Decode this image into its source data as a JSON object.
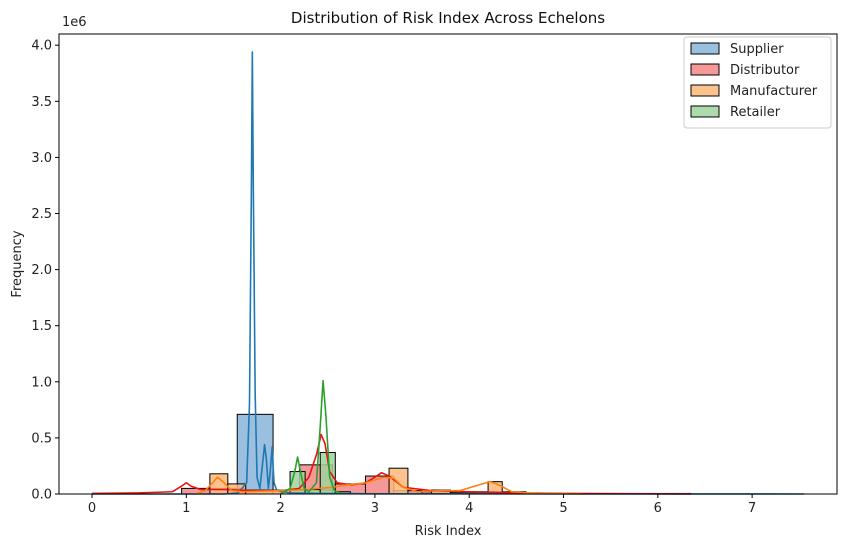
{
  "chart_data": {
    "type": "histogram",
    "title": "Distribution of Risk Index Across Echelons",
    "xlabel": "Risk Index",
    "ylabel": "Frequency",
    "y_offset_label": "1e6",
    "xlim": [
      -0.35,
      7.9
    ],
    "ylim": [
      0,
      4.1
    ],
    "x_ticks": [
      0,
      1,
      2,
      3,
      4,
      5,
      6,
      7
    ],
    "x_tick_labels": [
      "0",
      "1",
      "2",
      "3",
      "4",
      "5",
      "6",
      "7"
    ],
    "y_ticks": [
      0,
      0.5,
      1.0,
      1.5,
      2.0,
      2.5,
      3.0,
      3.5,
      4.0
    ],
    "y_tick_labels": [
      "0.0",
      "0.5",
      "1.0",
      "1.5",
      "2.0",
      "2.5",
      "3.0",
      "3.5",
      "4.0"
    ],
    "grid": false,
    "legend_position": "top-right",
    "series": [
      {
        "name": "Supplier",
        "fill": "#89b5d9",
        "line": "#1f77b4",
        "bins": [
          {
            "x0": 1.48,
            "x1": 1.54,
            "value": 0.01
          },
          {
            "x0": 1.54,
            "x1": 1.92,
            "value": 0.71
          },
          {
            "x0": 1.92,
            "x1": 2.0,
            "value": 0.03
          }
        ],
        "kde": [
          [
            0.0,
            0.0
          ],
          [
            1.4,
            0.0
          ],
          [
            1.55,
            0.01
          ],
          [
            1.64,
            0.1
          ],
          [
            1.67,
            0.8
          ],
          [
            1.69,
            2.7
          ],
          [
            1.7,
            3.94
          ],
          [
            1.71,
            2.8
          ],
          [
            1.73,
            0.9
          ],
          [
            1.75,
            0.15
          ],
          [
            1.78,
            0.05
          ],
          [
            1.8,
            0.2
          ],
          [
            1.83,
            0.44
          ],
          [
            1.85,
            0.3
          ],
          [
            1.87,
            0.05
          ],
          [
            1.89,
            0.2
          ],
          [
            1.91,
            0.42
          ],
          [
            1.93,
            0.1
          ],
          [
            1.96,
            0.03
          ],
          [
            2.1,
            0.01
          ],
          [
            2.4,
            0.005
          ],
          [
            3.0,
            0.002
          ],
          [
            5.0,
            0.001
          ],
          [
            7.55,
            0.0
          ]
        ]
      },
      {
        "name": "Distributor",
        "fill": "#f48686",
        "line": "#e8110f",
        "bins": [
          {
            "x0": 0.95,
            "x1": 1.62,
            "value": 0.05
          },
          {
            "x0": 2.2,
            "x1": 2.55,
            "value": 0.26
          },
          {
            "x0": 2.55,
            "x1": 2.9,
            "value": 0.09
          },
          {
            "x0": 2.9,
            "x1": 3.2,
            "value": 0.16
          },
          {
            "x0": 3.2,
            "x1": 3.5,
            "value": 0.03
          },
          {
            "x0": 3.5,
            "x1": 4.6,
            "value": 0.02
          },
          {
            "x0": 4.6,
            "x1": 6.35,
            "value": 0.005
          }
        ],
        "kde": [
          [
            0.0,
            0.005
          ],
          [
            0.5,
            0.01
          ],
          [
            0.85,
            0.02
          ],
          [
            0.95,
            0.07
          ],
          [
            1.0,
            0.1
          ],
          [
            1.05,
            0.07
          ],
          [
            1.15,
            0.04
          ],
          [
            1.4,
            0.04
          ],
          [
            1.7,
            0.03
          ],
          [
            2.0,
            0.03
          ],
          [
            2.2,
            0.05
          ],
          [
            2.3,
            0.15
          ],
          [
            2.38,
            0.35
          ],
          [
            2.43,
            0.53
          ],
          [
            2.47,
            0.45
          ],
          [
            2.52,
            0.2
          ],
          [
            2.6,
            0.1
          ],
          [
            2.75,
            0.08
          ],
          [
            2.9,
            0.1
          ],
          [
            3.0,
            0.15
          ],
          [
            3.07,
            0.19
          ],
          [
            3.15,
            0.16
          ],
          [
            3.3,
            0.06
          ],
          [
            3.6,
            0.03
          ],
          [
            4.0,
            0.02
          ],
          [
            4.5,
            0.01
          ],
          [
            5.0,
            0.005
          ],
          [
            6.35,
            0.0
          ]
        ]
      },
      {
        "name": "Manufacturer",
        "fill": "#fdb97b",
        "line": "#ff7f0e",
        "bins": [
          {
            "x0": 1.25,
            "x1": 1.44,
            "value": 0.18
          },
          {
            "x0": 1.44,
            "x1": 1.63,
            "value": 0.09
          },
          {
            "x0": 1.63,
            "x1": 2.55,
            "value": 0.035
          },
          {
            "x0": 3.15,
            "x1": 3.35,
            "value": 0.23
          },
          {
            "x0": 3.6,
            "x1": 3.8,
            "value": 0.035
          },
          {
            "x0": 3.8,
            "x1": 4.2,
            "value": 0.015
          },
          {
            "x0": 4.2,
            "x1": 4.35,
            "value": 0.11
          }
        ],
        "kde": [
          [
            1.1,
            0.0
          ],
          [
            1.2,
            0.03
          ],
          [
            1.28,
            0.1
          ],
          [
            1.33,
            0.15
          ],
          [
            1.4,
            0.1
          ],
          [
            1.48,
            0.03
          ],
          [
            1.6,
            0.02
          ],
          [
            2.0,
            0.03
          ],
          [
            2.3,
            0.04
          ],
          [
            2.4,
            0.05
          ],
          [
            2.55,
            0.06
          ],
          [
            2.7,
            0.08
          ],
          [
            2.9,
            0.1
          ],
          [
            3.1,
            0.15
          ],
          [
            3.2,
            0.14
          ],
          [
            3.3,
            0.06
          ],
          [
            3.45,
            0.02
          ],
          [
            3.7,
            0.03
          ],
          [
            3.9,
            0.03
          ],
          [
            4.1,
            0.08
          ],
          [
            4.22,
            0.11
          ],
          [
            4.32,
            0.08
          ],
          [
            4.45,
            0.02
          ],
          [
            4.7,
            0.005
          ],
          [
            5.2,
            0.0
          ]
        ]
      },
      {
        "name": "Retailer",
        "fill": "#9ed49e",
        "line": "#2ca02c",
        "bins": [
          {
            "x0": 2.1,
            "x1": 2.26,
            "value": 0.2
          },
          {
            "x0": 2.26,
            "x1": 2.42,
            "value": 0.04
          },
          {
            "x0": 2.42,
            "x1": 2.58,
            "value": 0.37
          },
          {
            "x0": 2.58,
            "x1": 2.74,
            "value": 0.02
          }
        ],
        "kde": [
          [
            2.0,
            0.0
          ],
          [
            2.1,
            0.05
          ],
          [
            2.15,
            0.2
          ],
          [
            2.18,
            0.33
          ],
          [
            2.21,
            0.2
          ],
          [
            2.25,
            0.05
          ],
          [
            2.3,
            0.02
          ],
          [
            2.38,
            0.1
          ],
          [
            2.42,
            0.6
          ],
          [
            2.45,
            1.01
          ],
          [
            2.48,
            0.7
          ],
          [
            2.52,
            0.15
          ],
          [
            2.57,
            0.03
          ],
          [
            2.65,
            0.0
          ]
        ]
      }
    ]
  }
}
